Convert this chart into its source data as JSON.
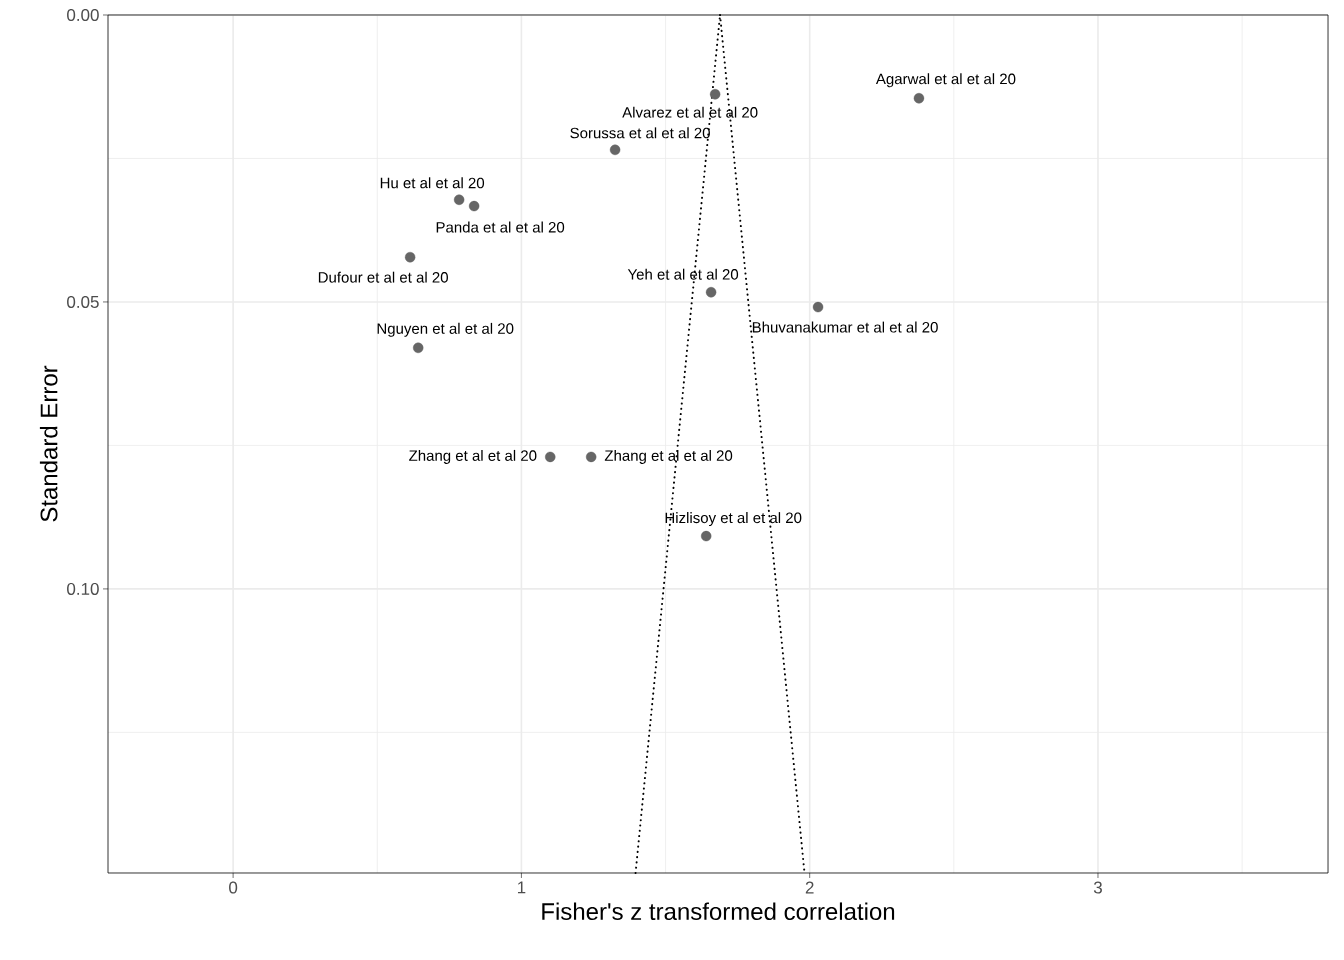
{
  "chart_data": {
    "type": "scatter",
    "xlabel": "Fisher's z transformed correlation",
    "ylabel": "Standard Error",
    "xlim": [
      -0.434,
      3.798
    ],
    "ylim": [
      0.1495,
      0
    ],
    "xticks": [
      0,
      {
        "value": 0.5,
        "label": null
      },
      1,
      {
        "value": 1.5,
        "label": null
      },
      2,
      {
        "value": 2.5,
        "label": null
      },
      3,
      {
        "value": 3.5,
        "label": null
      }
    ],
    "yticks": [
      {
        "value": 0,
        "label": "0.00"
      },
      {
        "value": 0.025,
        "label": null
      },
      {
        "value": 0.05,
        "label": "0.05"
      },
      {
        "value": 0.075,
        "label": null
      },
      {
        "value": 0.1,
        "label": "0.10"
      },
      {
        "value": 0.125,
        "label": null
      }
    ],
    "grid": true,
    "series": [
      {
        "type": "scatter",
        "marker": "circle",
        "color": "#666666",
        "x": [
          2.379,
          1.672,
          1.325,
          0.784,
          0.836,
          0.614,
          1.658,
          2.029,
          0.642,
          1.1,
          1.242,
          1.641
        ],
        "values": [
          0.0145,
          0.0138,
          0.0235,
          0.0322,
          0.0333,
          0.0422,
          0.0483,
          0.0509,
          0.058,
          0.077,
          0.077,
          0.0908
        ]
      },
      {
        "type": "line",
        "color": "#000000",
        "line_style": "dotted",
        "x": [
          1.396,
          1.689
        ],
        "values": [
          0.1495,
          0
        ]
      },
      {
        "type": "line",
        "color": "#000000",
        "line_style": "dotted",
        "x": [
          1.689,
          1.982
        ],
        "values": [
          0,
          0.1495
        ]
      }
    ],
    "annotations": [
      {
        "text": "Agarwal et al  et al 20",
        "x": 2.379,
        "y": 0.0145
      },
      {
        "text": "Alvarez et al  et al 20",
        "x": 1.672,
        "y": 0.0138
      },
      {
        "text": "Sorussa et al  et al 20",
        "x": 1.325,
        "y": 0.0235
      },
      {
        "text": "Hu et al  et al 20",
        "x": 0.784,
        "y": 0.0322
      },
      {
        "text": "Panda et al  et al 20",
        "x": 0.836,
        "y": 0.0333
      },
      {
        "text": "Dufour et al  et al 20",
        "x": 0.614,
        "y": 0.0422
      },
      {
        "text": "Yeh et al  et al 20",
        "x": 1.658,
        "y": 0.0483
      },
      {
        "text": "Bhuvanakumar et al  et al 20",
        "x": 2.029,
        "y": 0.0509
      },
      {
        "text": "Nguyen et al  et al 20",
        "x": 0.642,
        "y": 0.058
      },
      {
        "text": "Zhang et al  et al 20",
        "x": 1.1,
        "y": 0.077
      },
      {
        "text": "Zhang et al  et al 20",
        "x": 1.242,
        "y": 0.077
      },
      {
        "text": "Hizlisoy et al  et al 20",
        "x": 1.641,
        "y": 0.0908
      }
    ]
  }
}
